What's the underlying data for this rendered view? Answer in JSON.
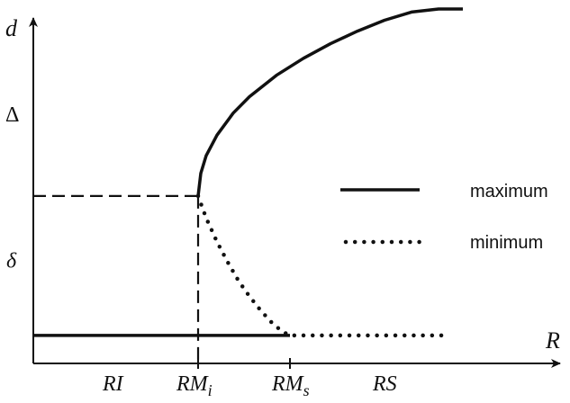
{
  "chart_data": {
    "type": "line",
    "title": "",
    "xlabel": "R",
    "ylabel": "d",
    "y_tick_labels": [
      "Δ",
      "δ"
    ],
    "regions": [
      {
        "name": "RI"
      },
      {
        "main": "RM",
        "sub": "i"
      },
      {
        "main": "RM",
        "sub": "s"
      },
      {
        "name": "RS"
      }
    ],
    "legend": {
      "placement": "right",
      "entries": [
        {
          "label": "maximum",
          "style": "solid"
        },
        {
          "label": "minimum",
          "style": "dotted"
        }
      ]
    },
    "xlim": [
      0,
      10
    ],
    "ylim": [
      0,
      10
    ],
    "params": {
      "RMi": 3.05,
      "RMs": 4.75,
      "x_end": 7.6,
      "d_base": 0.4,
      "d_split": 4.5,
      "d_max": 10.0
    },
    "series": [
      {
        "role": "maximum-lower",
        "style": "solid",
        "x": [
          0.0,
          4.75
        ],
        "y": [
          0.4,
          0.4
        ]
      },
      {
        "role": "maximum-upper",
        "style": "solid",
        "x": [
          3.05,
          3.1,
          3.2,
          3.4,
          3.7,
          4.0,
          4.5,
          5.0,
          5.5,
          6.0,
          6.5,
          7.0,
          7.5,
          7.95
        ],
        "y": [
          4.5,
          5.17,
          5.69,
          6.29,
          6.94,
          7.42,
          8.05,
          8.55,
          8.98,
          9.35,
          9.67,
          9.91,
          10.0,
          10.0
        ]
      },
      {
        "role": "minimum",
        "style": "dotted",
        "x": [
          3.05,
          3.2,
          3.4,
          3.6,
          3.8,
          4.0,
          4.2,
          4.4,
          4.6,
          4.75,
          5.2,
          5.8,
          6.4,
          7.0,
          7.6
        ],
        "y": [
          4.5,
          3.85,
          3.15,
          2.55,
          2.0,
          1.55,
          1.15,
          0.8,
          0.52,
          0.4,
          0.4,
          0.4,
          0.4,
          0.4,
          0.4
        ]
      },
      {
        "role": "threshold-horizontal",
        "style": "dashed",
        "x": [
          0.0,
          3.05
        ],
        "y": [
          4.5,
          4.5
        ]
      },
      {
        "role": "threshold-vertical",
        "style": "dashed",
        "x": [
          3.05,
          3.05
        ],
        "y": [
          4.5,
          0.0
        ]
      }
    ],
    "region_ticks": [
      3.05,
      4.75
    ],
    "y_tick_positions": [
      6.9,
      2.6
    ],
    "grid": false
  }
}
